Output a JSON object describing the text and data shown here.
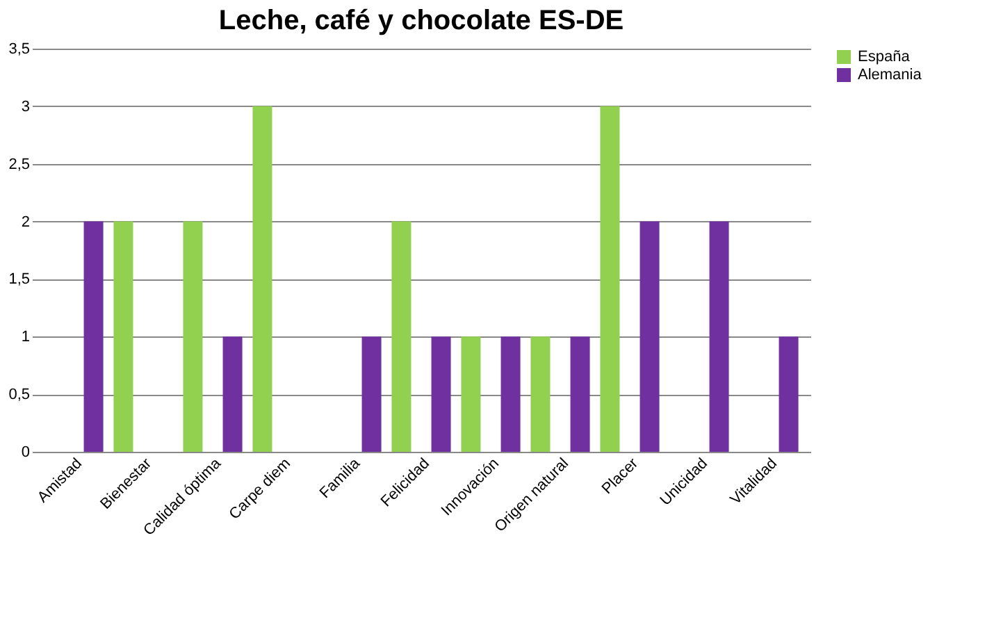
{
  "chart_data": {
    "type": "bar",
    "title": "Leche, café y chocolate ES-DE",
    "categories": [
      "Amistad",
      "Bienestar",
      "Calidad óptima",
      "Carpe diem",
      "Familia",
      "Felicidad",
      "Innovación",
      "Origen natural",
      "Placer",
      "Unicidad",
      "Vitalidad"
    ],
    "series": [
      {
        "name": "España",
        "color": "#92d050",
        "values": [
          0,
          2,
          2,
          3,
          0,
          2,
          1,
          1,
          3,
          0,
          0
        ]
      },
      {
        "name": "Alemania",
        "color": "#7030a0",
        "values": [
          2,
          0,
          1,
          0,
          1,
          1,
          1,
          1,
          2,
          2,
          1
        ]
      }
    ],
    "ylim": [
      0,
      3.5
    ],
    "yticks": [
      0,
      {
        "value": 0.5,
        "label": "0,5"
      },
      1,
      {
        "value": 1.5,
        "label": "1,5"
      },
      2,
      {
        "value": 2.5,
        "label": "2,5"
      },
      3,
      {
        "value": 3.5,
        "label": "3,5"
      }
    ],
    "grid": "y",
    "legend": "right"
  }
}
